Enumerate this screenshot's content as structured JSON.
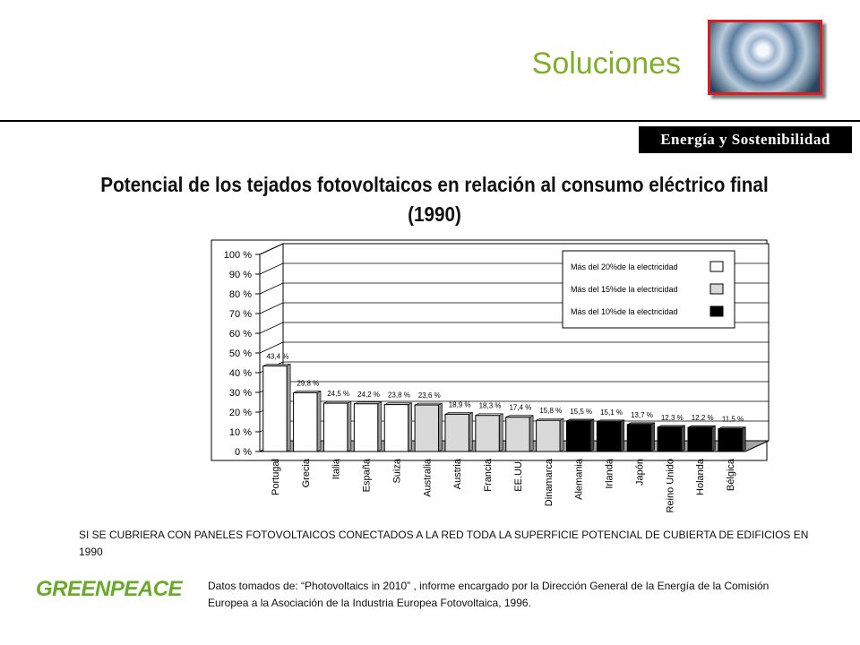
{
  "header": {
    "title": "Soluciones",
    "image": "hurricane satellite photo",
    "badge": "Energía y Sostenibilidad"
  },
  "chart_data": {
    "type": "bar",
    "title": "Potencial de los tejados fotovoltaicos en relación al consumo eléctrico final (1990)",
    "categories": [
      "Portugal",
      "Grecia",
      "Italia",
      "España",
      "Suiza",
      "Australia",
      "Austria",
      "Francia",
      "EE.UU.",
      "Dinamarca",
      "Alemania",
      "Irlanda",
      "Japón",
      "Reino Unido",
      "Holanda",
      "Bélgica"
    ],
    "values": [
      43.4,
      29.8,
      24.5,
      24.2,
      23.8,
      23.6,
      18.9,
      18.3,
      17.4,
      15.8,
      15.5,
      15.1,
      13.7,
      12.3,
      12.2,
      11.5
    ],
    "value_labels": [
      "43,4 %",
      "29,8 %",
      "24,5 %",
      "24,2 %",
      "23,8 %",
      "23,6 %",
      "18,9 %",
      "18,3 %",
      "17,4 %",
      "15,8 %",
      "15,5 %",
      "15,1 %",
      "13,7 %",
      "12,3 %",
      "12,2 %",
      "11,5 %"
    ],
    "groups": [
      "white",
      "white",
      "white",
      "white",
      "white",
      "light",
      "light",
      "light",
      "light",
      "light",
      "black",
      "black",
      "black",
      "black",
      "black",
      "black"
    ],
    "colors": {
      "white": "#ffffff",
      "light": "#d9d9d9",
      "black": "#000000"
    },
    "yticks": [
      "0 %",
      "10 %",
      "20 %",
      "30 %",
      "40 %",
      "50 %",
      "60 %",
      "70 %",
      "80 %",
      "90 %",
      "100 %"
    ],
    "ylim": [
      0,
      100
    ],
    "grid": true,
    "legend_position": "top-right",
    "legend": [
      {
        "label": "Más del 20%de la electricidad",
        "group": "white"
      },
      {
        "label": "Más del 15%de la electricidad",
        "group": "light"
      },
      {
        "label": "Más del 10%de la electricidad",
        "group": "black"
      }
    ]
  },
  "notes": {
    "caption": "SI SE CUBRIERA CON PANELES FOTOVOLTAICOS CONECTADOS A LA RED TODA  LA SUPERFICIE POTENCIAL DE CUBIERTA DE EDIFICIOS  EN 1990",
    "source": "Datos tomados de: “Photovoltaics in 2010” , informe encargado por la Dirección General de la  Energía de la Comisión Europea  a la Asociación de la Industria Europea Fotovoltaica, 1996."
  },
  "logo": {
    "text": "GREENPEACE"
  }
}
